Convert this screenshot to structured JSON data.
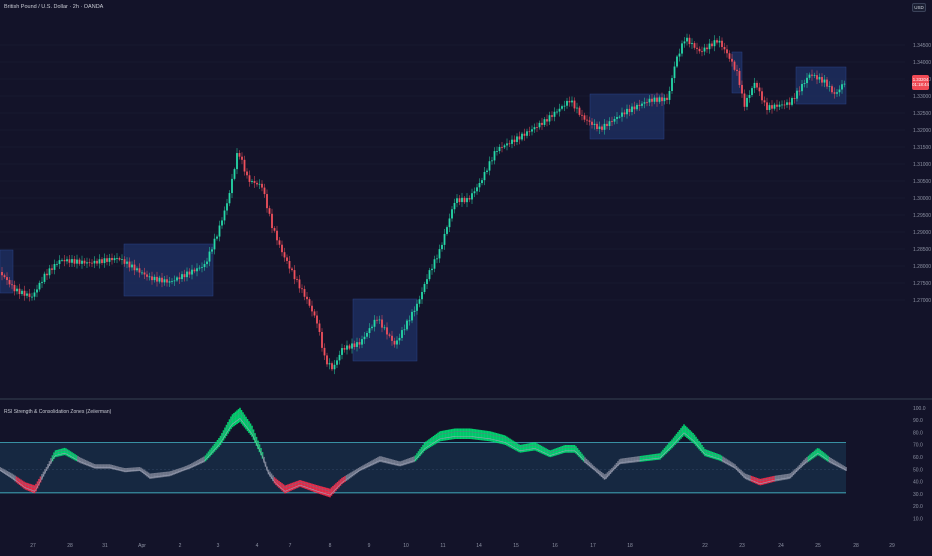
{
  "header": {
    "symbol_title": "British Pound / U.S. Dollar · 2h · OANDA",
    "currency": "USD"
  },
  "price_scale": {
    "labels": [
      "1.34500",
      "1.34000",
      "1.33500",
      "1.33000",
      "1.32500",
      "1.32000",
      "1.31500",
      "1.31000",
      "1.30500",
      "1.30000",
      "1.29500",
      "1.29000",
      "1.28500",
      "1.28000",
      "1.27500",
      "1.27000"
    ],
    "last_price": "1.33204",
    "countdown": "01:18:44"
  },
  "indicator": {
    "title": "RSI Strength & Consolidation Zones (Zeiierman)",
    "scale_labels": [
      "100.0",
      "90.0",
      "80.0",
      "70.0",
      "60.0",
      "50.0",
      "40.0",
      "30.0",
      "20.0",
      "10.0"
    ]
  },
  "time_axis": {
    "labels": [
      "27",
      "28",
      "31",
      "Apr",
      "2",
      "3",
      "4",
      "7",
      "8",
      "9",
      "10",
      "11",
      "14",
      "15",
      "16",
      "17",
      "18",
      "22",
      "23",
      "24",
      "25",
      "28",
      "29"
    ]
  },
  "colors": {
    "background": "#131329",
    "bull": "#26d9a8",
    "bear": "#f0505c",
    "zone": "#1f3266",
    "osc_bull": "#00e676",
    "osc_bear": "#ff2e4d",
    "osc_band": "#4fd3e3"
  }
}
